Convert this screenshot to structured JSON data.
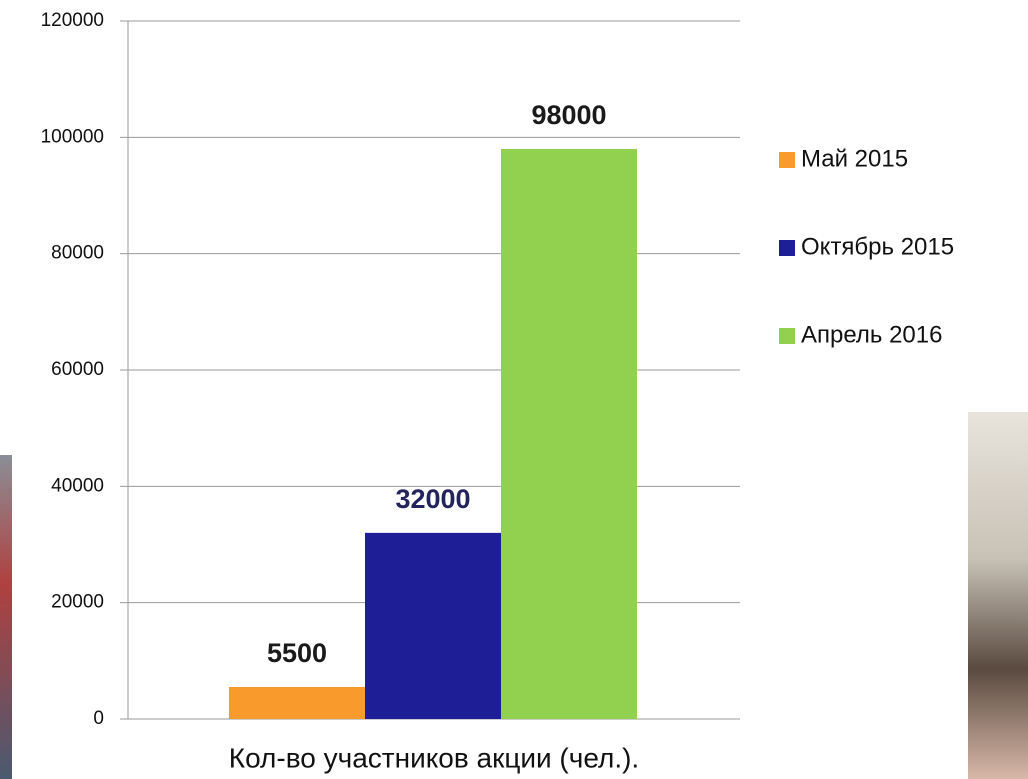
{
  "chart_data": {
    "type": "bar",
    "categories": [
      "Кол-во участников акции (чел.)."
    ],
    "series": [
      {
        "name": "Май 2015",
        "color": "#f89a2c",
        "values": [
          5500
        ]
      },
      {
        "name": "Октябрь 2015",
        "color": "#1e1e96",
        "values": [
          32000
        ]
      },
      {
        "name": "Апрель 2016",
        "color": "#92d050",
        "values": [
          98000
        ]
      }
    ],
    "ylim": [
      0,
      120000
    ],
    "yticks": [
      0,
      20000,
      40000,
      60000,
      80000,
      100000,
      120000
    ],
    "grid": true,
    "legend": "right"
  }
}
